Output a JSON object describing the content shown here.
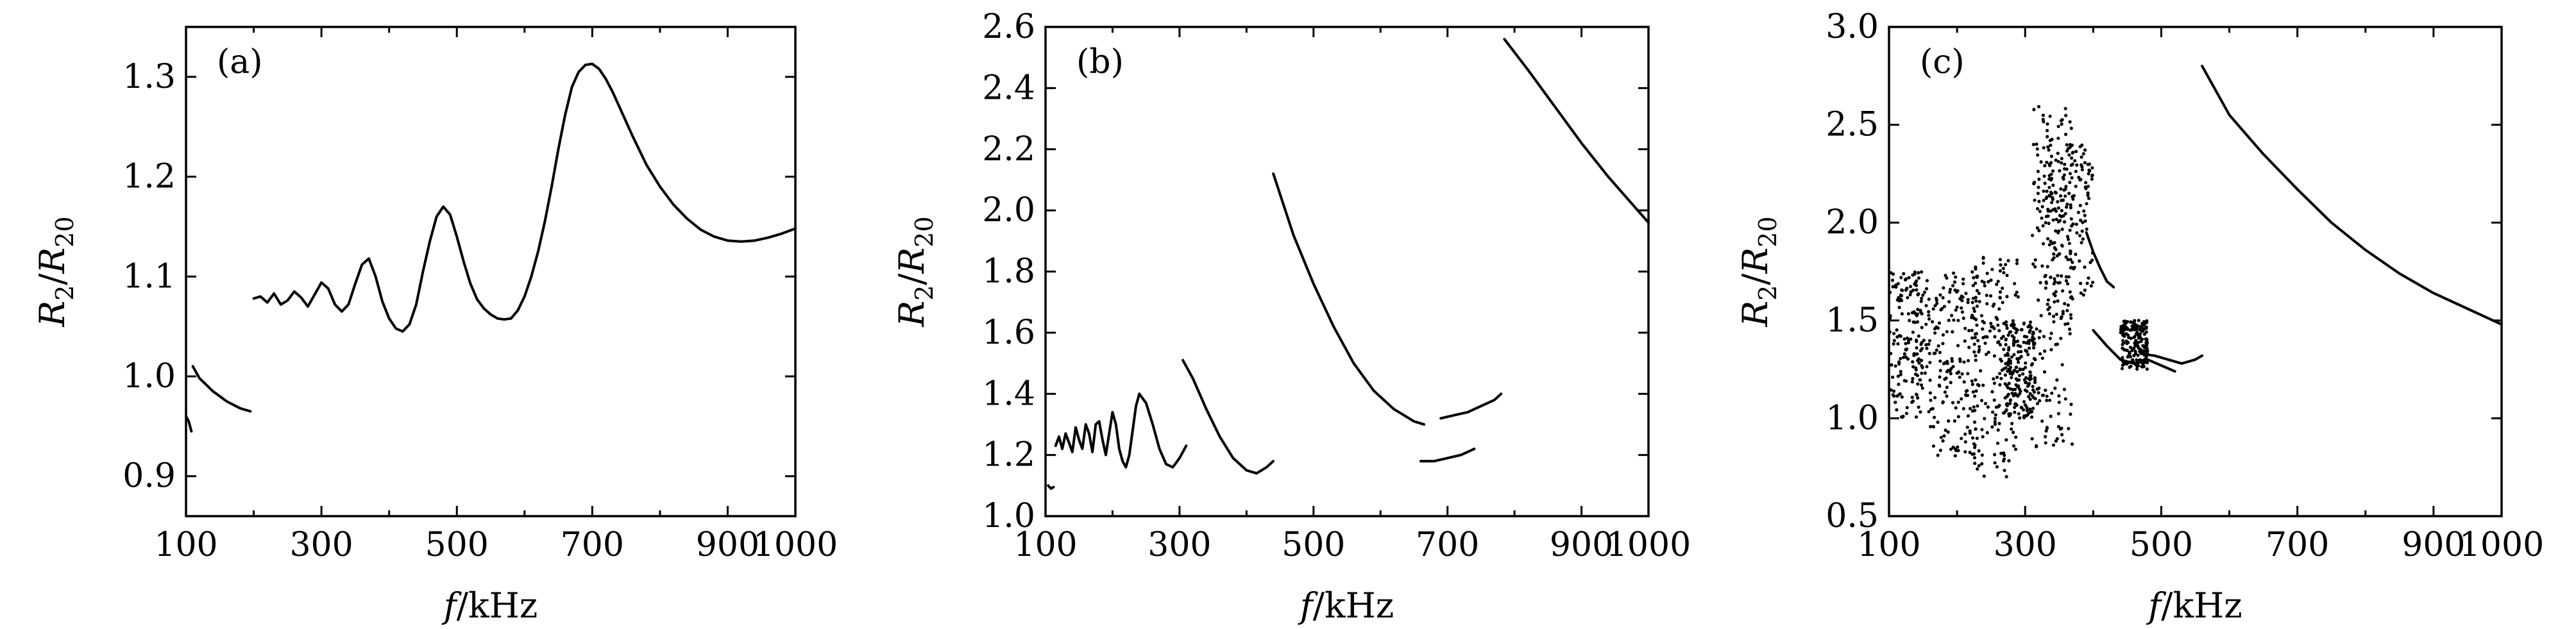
{
  "chart_data": [
    {
      "type": "line",
      "panel_label": "(a)",
      "xlabel": "f/kHz",
      "ylabel": "R2/R20",
      "xlim": [
        100,
        1000
      ],
      "ylim": [
        0.86,
        1.35
      ],
      "xticks": [
        100,
        300,
        500,
        700,
        900,
        1000
      ],
      "xticklabels": [
        "100",
        "300",
        "500",
        "700",
        "900",
        "1000"
      ],
      "yticks": [
        0.9,
        1.0,
        1.1,
        1.2,
        1.3
      ],
      "yticklabels": [
        "0.9",
        "1.0",
        "1.1",
        "1.2",
        "1.3"
      ],
      "grid": false,
      "series": [
        {
          "x": [
            100,
            104,
            108
          ],
          "y": [
            0.96,
            0.955,
            0.945
          ]
        },
        {
          "x": [
            110,
            120,
            140,
            160,
            180,
            195
          ],
          "y": [
            1.01,
            0.998,
            0.985,
            0.975,
            0.968,
            0.965
          ]
        },
        {
          "x": [
            200,
            210,
            220,
            230,
            240,
            250,
            260,
            270,
            280,
            290,
            300,
            310,
            320,
            330,
            340,
            350,
            360,
            370,
            380,
            390,
            400,
            410,
            420,
            430,
            440,
            450,
            460,
            470,
            480,
            490,
            500,
            510,
            520,
            530,
            540,
            550,
            560,
            570,
            580,
            590,
            600,
            610,
            620,
            630,
            640,
            650,
            660,
            670,
            680,
            690,
            700,
            710,
            720,
            730,
            740,
            760,
            780,
            800,
            820,
            840,
            860,
            880,
            900,
            920,
            940,
            960,
            980,
            1000
          ],
          "y": [
            1.078,
            1.08,
            1.074,
            1.083,
            1.072,
            1.076,
            1.085,
            1.079,
            1.07,
            1.082,
            1.094,
            1.088,
            1.072,
            1.065,
            1.072,
            1.093,
            1.112,
            1.118,
            1.1,
            1.075,
            1.058,
            1.048,
            1.045,
            1.052,
            1.072,
            1.105,
            1.135,
            1.16,
            1.17,
            1.162,
            1.14,
            1.115,
            1.093,
            1.077,
            1.068,
            1.062,
            1.058,
            1.057,
            1.058,
            1.066,
            1.08,
            1.1,
            1.125,
            1.155,
            1.19,
            1.228,
            1.262,
            1.29,
            1.305,
            1.312,
            1.313,
            1.308,
            1.298,
            1.285,
            1.27,
            1.24,
            1.212,
            1.19,
            1.172,
            1.158,
            1.147,
            1.14,
            1.136,
            1.135,
            1.136,
            1.139,
            1.143,
            1.148
          ]
        }
      ]
    },
    {
      "type": "line",
      "panel_label": "(b)",
      "xlabel": "f/kHz",
      "ylabel": "R2/R20",
      "xlim": [
        100,
        1000
      ],
      "ylim": [
        1.0,
        2.6
      ],
      "xticks": [
        100,
        300,
        500,
        700,
        900,
        1000
      ],
      "xticklabels": [
        "100",
        "300",
        "500",
        "700",
        "900",
        "1000"
      ],
      "yticks": [
        1.0,
        1.2,
        1.4,
        1.6,
        1.8,
        2.0,
        2.2,
        2.4,
        2.6
      ],
      "yticklabels": [
        "1.0",
        "1.2",
        "1.4",
        "1.6",
        "1.8",
        "2.0",
        "2.2",
        "2.4",
        "2.6"
      ],
      "grid": false,
      "series": [
        {
          "x": [
            104,
            108,
            112
          ],
          "y": [
            1.1,
            1.09,
            1.095
          ]
        },
        {
          "x": [
            115,
            120,
            125,
            130,
            135,
            140,
            145,
            150,
            155,
            160,
            165,
            170,
            175,
            180,
            185,
            190,
            195,
            200,
            205,
            210,
            215,
            220,
            225,
            230,
            235,
            240
          ],
          "y": [
            1.23,
            1.26,
            1.22,
            1.27,
            1.24,
            1.21,
            1.29,
            1.25,
            1.22,
            1.3,
            1.27,
            1.21,
            1.3,
            1.31,
            1.25,
            1.2,
            1.27,
            1.34,
            1.3,
            1.22,
            1.18,
            1.16,
            1.2,
            1.28,
            1.36,
            1.4
          ]
        },
        {
          "x": [
            240,
            250,
            260,
            270,
            280,
            290,
            300,
            310
          ],
          "y": [
            1.4,
            1.37,
            1.3,
            1.22,
            1.17,
            1.16,
            1.19,
            1.23
          ]
        },
        {
          "x": [
            305,
            320,
            340,
            360,
            380,
            400,
            415,
            430,
            440
          ],
          "y": [
            1.51,
            1.45,
            1.35,
            1.26,
            1.19,
            1.15,
            1.14,
            1.16,
            1.18
          ]
        },
        {
          "x": [
            440,
            470,
            500,
            530,
            560,
            590,
            620,
            650,
            665
          ],
          "y": [
            2.12,
            1.92,
            1.76,
            1.62,
            1.5,
            1.41,
            1.35,
            1.31,
            1.3
          ]
        },
        {
          "x": [
            660,
            680,
            700,
            720,
            740
          ],
          "y": [
            1.18,
            1.18,
            1.19,
            1.2,
            1.22
          ]
        },
        {
          "x": [
            690,
            710,
            730,
            750,
            770,
            780
          ],
          "y": [
            1.32,
            1.33,
            1.34,
            1.36,
            1.38,
            1.4
          ]
        },
        {
          "x": [
            785,
            820,
            860,
            900,
            940,
            980,
            1000
          ],
          "y": [
            2.56,
            2.46,
            2.34,
            2.22,
            2.11,
            2.01,
            1.96
          ]
        }
      ]
    },
    {
      "type": "scatter",
      "panel_label": "(c)",
      "xlabel": "f/kHz",
      "ylabel": "R2/R20",
      "xlim": [
        100,
        1000
      ],
      "ylim": [
        0.5,
        3.0
      ],
      "xticks": [
        100,
        300,
        500,
        700,
        900,
        1000
      ],
      "xticklabels": [
        "100",
        "300",
        "500",
        "700",
        "900",
        "1000"
      ],
      "yticks": [
        0.5,
        1.0,
        1.5,
        2.0,
        2.5,
        3.0
      ],
      "yticklabels": [
        "0.5",
        "1.0",
        "1.5",
        "2.0",
        "2.5",
        "3.0"
      ],
      "grid": false,
      "scatter_clusters": [
        {
          "x": [
            100,
            160
          ],
          "y": [
            1.0,
            1.75
          ]
        },
        {
          "x": [
            160,
            230
          ],
          "y": [
            0.8,
            1.75
          ]
        },
        {
          "x": [
            225,
            290
          ],
          "y": [
            0.7,
            1.85
          ]
        },
        {
          "x": [
            270,
            315
          ],
          "y": [
            1.0,
            1.5
          ]
        },
        {
          "x": [
            310,
            370
          ],
          "y": [
            0.85,
            2.6
          ]
        },
        {
          "x": [
            330,
            400
          ],
          "y": [
            1.6,
            2.4
          ]
        },
        {
          "x": [
            440,
            480
          ],
          "y": [
            1.25,
            1.5
          ]
        }
      ],
      "series": [
        {
          "x": [
            390,
            400,
            410,
            420,
            430
          ],
          "y": [
            1.95,
            1.85,
            1.77,
            1.7,
            1.67
          ]
        },
        {
          "x": [
            400,
            420,
            440,
            460,
            480,
            500,
            520
          ],
          "y": [
            1.45,
            1.37,
            1.3,
            1.28,
            1.3,
            1.27,
            1.24
          ]
        },
        {
          "x": [
            470,
            490,
            510,
            530,
            550,
            560
          ],
          "y": [
            1.33,
            1.32,
            1.3,
            1.28,
            1.3,
            1.32
          ]
        },
        {
          "x": [
            560,
            600,
            650,
            700,
            750,
            800,
            850,
            900,
            950,
            1000
          ],
          "y": [
            2.8,
            2.55,
            2.35,
            2.17,
            2.0,
            1.86,
            1.74,
            1.64,
            1.56,
            1.48
          ]
        }
      ]
    }
  ]
}
